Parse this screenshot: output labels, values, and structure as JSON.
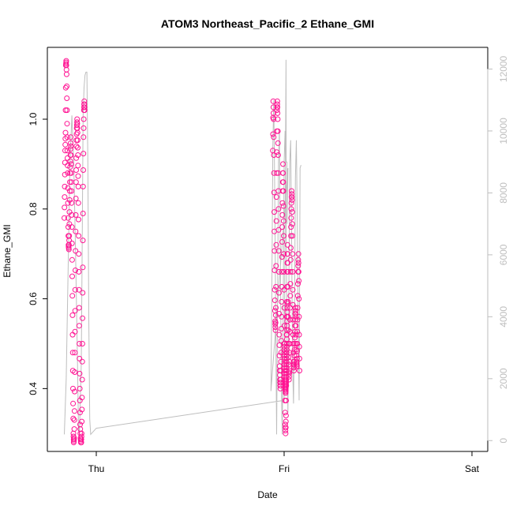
{
  "chart_data": {
    "type": "scatter",
    "title": "ATOM3 Northeast_Pacific_2 Ethane_GMI",
    "xlabel": "Date",
    "ylabel": "Ethane_GMI",
    "x_ticks": [
      "Thu",
      "Fri",
      "Sat"
    ],
    "ylim": [
      0.26,
      1.16
    ],
    "y_ticks": [
      "0.4",
      "0.6",
      "0.8",
      "1.0"
    ],
    "y2_ticks": [
      "0",
      "2000",
      "4000",
      "6000",
      "8000",
      "10000",
      "12000"
    ],
    "y2lim": [
      -350,
      12700
    ],
    "grid": false,
    "colors": {
      "points": "#ff1493",
      "altitude_line": "#bebebe",
      "axis": "#000000",
      "right_axis": "#bebebe"
    },
    "series": [
      {
        "marker": "open-circle",
        "segments": [
          [
            [
              -0.17,
              0.78
            ],
            [
              -0.168,
              0.85
            ],
            [
              -0.166,
              0.93
            ],
            [
              -0.164,
              0.97
            ],
            [
              -0.162,
              1.12
            ],
            [
              -0.16,
              1.13
            ],
            [
              -0.158,
              1.1
            ],
            [
              -0.156,
              1.02
            ],
            [
              -0.154,
              0.93
            ],
            [
              -0.152,
              0.88
            ],
            [
              -0.15,
              0.78
            ],
            [
              -0.148,
              0.72
            ],
            [
              -0.146,
              0.71
            ],
            [
              -0.144,
              0.74
            ],
            [
              -0.142,
              0.82
            ],
            [
              -0.14,
              0.88
            ],
            [
              -0.138,
              0.92
            ],
            [
              -0.136,
              0.96
            ],
            [
              -0.134,
              0.9
            ],
            [
              -0.132,
              0.84
            ],
            [
              -0.13,
              0.76
            ],
            [
              -0.128,
              0.65
            ],
            [
              -0.126,
              0.52
            ],
            [
              -0.124,
              0.4
            ],
            [
              -0.122,
              0.3
            ],
            [
              -0.12,
              0.28
            ],
            [
              -0.118,
              0.29
            ],
            [
              -0.116,
              0.35
            ],
            [
              -0.114,
              0.48
            ],
            [
              -0.112,
              0.62
            ],
            [
              -0.11,
              0.75
            ],
            [
              -0.108,
              0.86
            ],
            [
              -0.106,
              0.94
            ],
            [
              -0.104,
              0.98
            ],
            [
              -0.102,
              1.0
            ],
            [
              -0.1,
              0.97
            ],
            [
              -0.098,
              0.92
            ],
            [
              -0.096,
              0.85
            ],
            [
              -0.094,
              0.74
            ],
            [
              -0.092,
              0.62
            ],
            [
              -0.09,
              0.5
            ],
            [
              -0.088,
              0.4
            ],
            [
              -0.086,
              0.32
            ],
            [
              -0.084,
              0.29
            ],
            [
              -0.082,
              0.28
            ],
            [
              -0.08,
              0.28
            ],
            [
              -0.078,
              0.3
            ],
            [
              -0.076,
              0.38
            ],
            [
              -0.074,
              0.5
            ],
            [
              -0.072,
              0.67
            ],
            [
              -0.07,
              0.85
            ],
            [
              -0.068,
              0.96
            ],
            [
              -0.066,
              1.02
            ],
            [
              -0.064,
              1.04
            ],
            [
              -0.062,
              1.02
            ]
          ],
          [
            [
              1.0,
              0.5
            ],
            [
              1.001,
              0.48
            ],
            [
              1.002,
              0.46
            ],
            [
              1.003,
              0.44
            ],
            [
              1.004,
              0.42
            ],
            [
              1.005,
              0.41
            ],
            [
              1.006,
              0.4
            ],
            [
              1.007,
              0.4
            ],
            [
              1.008,
              0.39
            ],
            [
              1.009,
              0.4
            ],
            [
              1.01,
              0.41
            ],
            [
              1.011,
              0.42
            ],
            [
              1.012,
              0.44
            ],
            [
              1.013,
              0.46
            ],
            [
              1.014,
              0.48
            ],
            [
              1.015,
              0.5
            ],
            [
              1.016,
              0.53
            ],
            [
              1.017,
              0.56
            ],
            [
              1.018,
              0.59
            ]
          ],
          [
            [
              0.94,
              0.93
            ],
            [
              0.942,
              1.04
            ],
            [
              0.944,
              1.0
            ],
            [
              0.946,
              0.88
            ],
            [
              0.948,
              0.75
            ],
            [
              0.95,
              0.62
            ],
            [
              0.952,
              0.55
            ],
            [
              0.954,
              0.53
            ],
            [
              0.956,
              0.58
            ],
            [
              0.958,
              0.72
            ],
            [
              0.96,
              0.88
            ],
            [
              0.962,
              1.02
            ],
            [
              0.964,
              1.04
            ],
            [
              0.966,
              1.0
            ],
            [
              0.968,
              0.92
            ],
            [
              0.97,
              0.8
            ],
            [
              0.972,
              0.66
            ],
            [
              0.974,
              0.52
            ],
            [
              0.976,
              0.45
            ],
            [
              0.978,
              0.42
            ],
            [
              0.98,
              0.4
            ],
            [
              0.982,
              0.42
            ],
            [
              0.984,
              0.48
            ],
            [
              0.986,
              0.56
            ],
            [
              0.988,
              0.66
            ],
            [
              0.99,
              0.76
            ],
            [
              0.992,
              0.84
            ],
            [
              0.994,
              0.9
            ],
            [
              0.996,
              0.84
            ],
            [
              0.998,
              0.74
            ],
            [
              1.0,
              0.62
            ],
            [
              1.002,
              0.5
            ],
            [
              1.004,
              0.4
            ],
            [
              1.006,
              0.32
            ],
            [
              1.008,
              0.3
            ],
            [
              1.01,
              0.34
            ],
            [
              1.012,
              0.44
            ],
            [
              1.014,
              0.56
            ],
            [
              1.016,
              0.66
            ],
            [
              1.018,
              0.72
            ],
            [
              1.02,
              0.66
            ],
            [
              1.022,
              0.56
            ],
            [
              1.024,
              0.47
            ],
            [
              1.026,
              0.42
            ],
            [
              1.028,
              0.44
            ],
            [
              1.03,
              0.5
            ],
            [
              1.032,
              0.58
            ],
            [
              1.034,
              0.66
            ],
            [
              1.036,
              0.74
            ],
            [
              1.038,
              0.8
            ],
            [
              1.04,
              0.84
            ],
            [
              1.042,
              0.82
            ],
            [
              1.044,
              0.74
            ],
            [
              1.046,
              0.62
            ],
            [
              1.048,
              0.52
            ],
            [
              1.05,
              0.46
            ],
            [
              1.052,
              0.44
            ],
            [
              1.054,
              0.46
            ],
            [
              1.056,
              0.5
            ],
            [
              1.058,
              0.54
            ],
            [
              1.06,
              0.58
            ],
            [
              1.062,
              0.56
            ],
            [
              1.064,
              0.5
            ],
            [
              1.066,
              0.46
            ],
            [
              1.068,
              0.45
            ],
            [
              1.07,
              0.5
            ],
            [
              1.072,
              0.58
            ],
            [
              1.074,
              0.66
            ],
            [
              1.076,
              0.7
            ],
            [
              1.078,
              0.64
            ],
            [
              1.08,
              0.52
            ],
            [
              1.082,
              0.44
            ]
          ]
        ]
      },
      {
        "axis": "right",
        "style": "line",
        "segments": [
          [
            [
              -0.17,
              200
            ],
            [
              -0.16,
              2000
            ],
            [
              -0.15,
              5500
            ],
            [
              -0.14,
              9000
            ],
            [
              -0.13,
              10500
            ],
            [
              -0.12,
              9000
            ],
            [
              -0.11,
              6000
            ],
            [
              -0.1,
              2500
            ],
            [
              -0.095,
              500
            ],
            [
              -0.09,
              200
            ],
            [
              -0.08,
              2500
            ],
            [
              -0.075,
              6500
            ],
            [
              -0.07,
              10500
            ],
            [
              -0.065,
              11400
            ],
            [
              -0.06,
              11800
            ],
            [
              -0.055,
              11900
            ],
            [
              -0.05,
              11900
            ],
            [
              -0.045,
              9000
            ],
            [
              -0.04,
              4000
            ],
            [
              -0.035,
              700
            ],
            [
              -0.03,
              200
            ],
            [
              0.0,
              400
            ],
            [
              1.0,
              1300
            ],
            [
              1.01,
              12300
            ],
            [
              1.011,
              9000
            ],
            [
              1.015,
              9000
            ],
            [
              1.016,
              7000
            ],
            [
              1.02,
              8800
            ],
            [
              0.93,
              1600
            ],
            [
              0.935,
              5000
            ],
            [
              0.94,
              9500
            ],
            [
              0.945,
              11000
            ],
            [
              0.95,
              8000
            ],
            [
              0.955,
              4000
            ],
            [
              0.96,
              200
            ],
            [
              0.965,
              4500
            ],
            [
              0.97,
              9000
            ],
            [
              0.975,
              10000
            ],
            [
              0.98,
              6000
            ],
            [
              0.985,
              2000
            ],
            [
              0.99,
              200
            ],
            [
              0.995,
              4000
            ],
            [
              1.0,
              9000
            ],
            [
              1.005,
              10000
            ],
            [
              1.01,
              7500
            ],
            [
              1.015,
              3500
            ],
            [
              1.02,
              900
            ],
            [
              1.025,
              4500
            ],
            [
              1.03,
              9000
            ],
            [
              1.035,
              9700
            ],
            [
              1.04,
              6500
            ],
            [
              1.045,
              2500
            ],
            [
              1.05,
              1200
            ],
            [
              1.055,
              4000
            ],
            [
              1.06,
              8500
            ],
            [
              1.065,
              9700
            ],
            [
              1.07,
              7000
            ],
            [
              1.075,
              3500
            ],
            [
              1.08,
              1300
            ],
            [
              1.085,
              8800
            ],
            [
              1.09,
              8900
            ]
          ]
        ]
      }
    ]
  }
}
